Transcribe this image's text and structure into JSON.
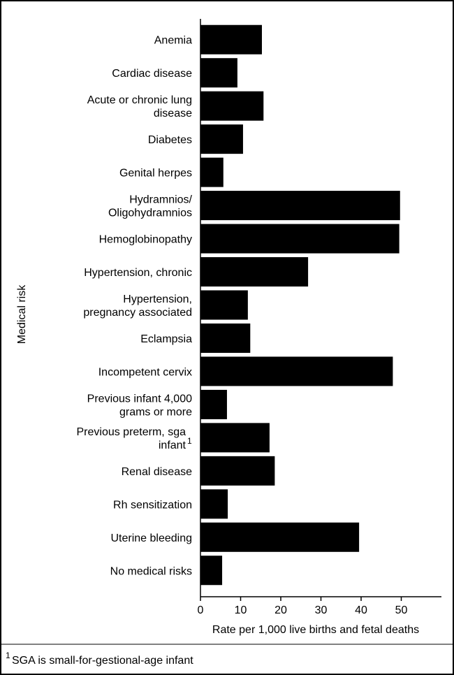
{
  "chart_data": {
    "type": "barh",
    "categories": [
      "Anemia",
      "Cardiac disease",
      "Acute or chronic lung\ndisease",
      "Diabetes",
      "Genital herpes",
      "Hydramnios/\nOligohydramnios",
      "Hemoglobinopathy",
      "Hypertension, chronic",
      "Hypertension,\npregnancy associated",
      "Eclampsia",
      "Incompetent cervix",
      "Previous infant 4,000\ngrams or more",
      "Previous preterm, sga\ninfant",
      "Renal disease",
      "Rh sensitization",
      "Uterine bleeding",
      "No medical risks"
    ],
    "category_markers": [
      null,
      null,
      null,
      null,
      null,
      null,
      null,
      null,
      null,
      null,
      null,
      null,
      "1",
      null,
      null,
      null,
      null
    ],
    "values": [
      15.3,
      9.2,
      15.7,
      10.6,
      5.7,
      49.7,
      49.5,
      26.8,
      11.8,
      12.4,
      47.9,
      6.6,
      17.2,
      18.5,
      6.8,
      39.5,
      5.4
    ],
    "color": "#000000",
    "xlim": [
      0,
      60
    ],
    "xticks": [
      0,
      10,
      20,
      30,
      40,
      50
    ],
    "xlabel": "Rate per 1,000 live births and fetal deaths",
    "ylabel": "Medical risk",
    "footnote": {
      "marker": "1",
      "text": "SGA is small-for-gestional-age infant"
    }
  }
}
